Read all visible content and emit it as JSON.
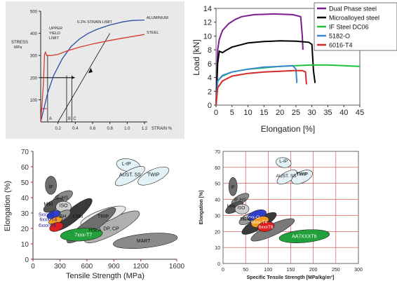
{
  "chart_data": [
    {
      "type": "line",
      "ylabel": "STRESS\nMPa",
      "xlabel": "STRAIN %",
      "xlim": [
        0,
        1.2
      ],
      "ylim": [
        0,
        500
      ],
      "xticks": [
        "0.2",
        "0.4",
        "0.6",
        "0.8",
        "1.0",
        "1.2"
      ],
      "yticks": [
        "100",
        "200",
        "300",
        "400",
        "500"
      ],
      "series": [
        {
          "name": "ALUMINIUM",
          "color": "#2b4fa3",
          "points": [
            [
              0,
              0
            ],
            [
              0.08,
              130
            ],
            [
              0.15,
              210
            ],
            [
              0.25,
              285
            ],
            [
              0.35,
              340
            ],
            [
              0.45,
              375
            ],
            [
              0.55,
              400
            ],
            [
              0.65,
              418
            ],
            [
              0.8,
              438
            ],
            [
              0.95,
              452
            ],
            [
              1.05,
              458
            ],
            [
              1.2,
              460
            ]
          ]
        },
        {
          "name": "STEEL",
          "color": "#d63a30",
          "points": [
            [
              0,
              0
            ],
            [
              0.03,
              160
            ],
            [
              0.045,
              305
            ],
            [
              0.055,
              315
            ],
            [
              0.07,
              300
            ],
            [
              0.12,
              300
            ],
            [
              0.2,
              305
            ],
            [
              0.3,
              320
            ],
            [
              0.45,
              338
            ],
            [
              0.6,
              352
            ],
            [
              0.8,
              368
            ],
            [
              1.0,
              382
            ],
            [
              1.2,
              395
            ]
          ]
        }
      ],
      "annotations": [
        "UPPER\nYIELD\nLIMIT",
        "0.2% STRAIN LIMIT",
        "ALUMINIUM",
        "STEEL",
        "A",
        "B",
        "C"
      ],
      "reference_levels": [
        200,
        60
      ]
    },
    {
      "type": "line",
      "ylabel": "Load [kN]",
      "xlabel": "Elongation [%]",
      "xlim": [
        0,
        45
      ],
      "ylim": [
        0,
        14
      ],
      "xticks": [
        "0",
        "5",
        "10",
        "15",
        "20",
        "25",
        "30",
        "35",
        "40",
        "45"
      ],
      "yticks": [
        "0",
        "2",
        "4",
        "6",
        "8",
        "10",
        "12",
        "14"
      ],
      "legend_position": "top-right",
      "series": [
        {
          "name": "Dual Phase steel",
          "color": "#7a1f8c",
          "points": [
            [
              0,
              0
            ],
            [
              0.5,
              8
            ],
            [
              1,
              9.5
            ],
            [
              2,
              10.8
            ],
            [
              4,
              11.8
            ],
            [
              6,
              12.4
            ],
            [
              8,
              12.8
            ],
            [
              12,
              13.1
            ],
            [
              18,
              13.2
            ],
            [
              24,
              13.1
            ],
            [
              26.5,
              12.8
            ],
            [
              27,
              10
            ],
            [
              27.2,
              8
            ]
          ]
        },
        {
          "name": "Microalloyed steel",
          "color": "#000000",
          "points": [
            [
              0,
              0
            ],
            [
              0.5,
              6
            ],
            [
              1,
              7.8
            ],
            [
              2,
              7.6
            ],
            [
              3,
              7.9
            ],
            [
              5,
              8.4
            ],
            [
              10,
              9.0
            ],
            [
              15,
              9.2
            ],
            [
              20,
              9.3
            ],
            [
              25,
              9.25
            ],
            [
              29,
              9.1
            ],
            [
              30,
              8.8
            ],
            [
              30.5,
              5
            ],
            [
              31,
              3.2
            ]
          ]
        },
        {
          "name": "IF Steel DC06",
          "color": "#22c33a",
          "points": [
            [
              0,
              0
            ],
            [
              0.5,
              3.5
            ],
            [
              2,
              4.2
            ],
            [
              5,
              4.8
            ],
            [
              10,
              5.2
            ],
            [
              15,
              5.4
            ],
            [
              20,
              5.6
            ],
            [
              25,
              5.7
            ],
            [
              30,
              5.8
            ],
            [
              35,
              5.8
            ],
            [
              40,
              5.7
            ],
            [
              45,
              5.6
            ]
          ]
        },
        {
          "name": "5182-O",
          "color": "#3d86d6",
          "points": [
            [
              0,
              0
            ],
            [
              0.5,
              3.5
            ],
            [
              2,
              4.3
            ],
            [
              5,
              4.8
            ],
            [
              10,
              5.2
            ],
            [
              15,
              5.5
            ],
            [
              20,
              5.6
            ],
            [
              24,
              5.7
            ],
            [
              25,
              5.2
            ],
            [
              25.3,
              3.2
            ]
          ]
        },
        {
          "name": "6016-T4",
          "color": "#d42a2a",
          "points": [
            [
              0,
              0
            ],
            [
              0.5,
              2.5
            ],
            [
              2,
              3.5
            ],
            [
              5,
              4.2
            ],
            [
              10,
              4.6
            ],
            [
              15,
              4.8
            ],
            [
              20,
              4.9
            ],
            [
              24,
              5.0
            ],
            [
              27,
              5.0
            ],
            [
              28,
              4.8
            ],
            [
              28.3,
              3.0
            ]
          ]
        }
      ]
    },
    {
      "type": "scatter",
      "ylabel": "Elongation (%)",
      "xlabel": "Tensile Strength (MPa)",
      "xlim": [
        0,
        1600
      ],
      "ylim": [
        0,
        70
      ],
      "xticks": [
        "0",
        "300",
        "600",
        "900",
        "1200",
        "1600"
      ],
      "yticks": [
        "0",
        "10",
        "20",
        "30",
        "40",
        "50",
        "60",
        "70"
      ],
      "regions": [
        {
          "label": "IF",
          "x": 200,
          "y": 47
        },
        {
          "label": "IF-HS",
          "x": 320,
          "y": 40
        },
        {
          "label": "Mild",
          "x": 170,
          "y": 36
        },
        {
          "label": "ISO",
          "x": 340,
          "y": 35
        },
        {
          "label": "BH",
          "x": 330,
          "y": 28
        },
        {
          "label": "5xxx-O",
          "x": 150,
          "y": 29
        },
        {
          "label": "6xxx-T4",
          "x": 170,
          "y": 26
        },
        {
          "label": "6xxx-T6",
          "x": 160,
          "y": 22
        },
        {
          "label": "CMn",
          "x": 500,
          "y": 28
        },
        {
          "label": "TRIP",
          "x": 780,
          "y": 28
        },
        {
          "label": "HSLA",
          "x": 690,
          "y": 19
        },
        {
          "label": "DP, CP",
          "x": 870,
          "y": 20
        },
        {
          "label": "MART",
          "x": 1230,
          "y": 12
        },
        {
          "label": "7xxx-T7",
          "x": 560,
          "y": 16
        },
        {
          "label": "L-IP",
          "x": 1040,
          "y": 62
        },
        {
          "label": "AUST. SS",
          "x": 1080,
          "y": 55
        },
        {
          "label": "TWIP",
          "x": 1340,
          "y": 55
        }
      ],
      "tick_color": "#b02020"
    },
    {
      "type": "scatter",
      "ylabel": "Elongation [%]",
      "xlabel": "Specific Tensile Strength [MPa/kg/m³]",
      "xlim": [
        0,
        300
      ],
      "ylim": [
        0,
        70
      ],
      "xticks": [
        "0",
        "50",
        "100",
        "150",
        "200",
        "250",
        "300"
      ],
      "yticks": [
        "0",
        "10",
        "20",
        "30",
        "40",
        "50",
        "60",
        "70"
      ],
      "regions": [
        {
          "label": "IF",
          "x": 22,
          "y": 48
        },
        {
          "label": "IF-HS",
          "x": 38,
          "y": 40
        },
        {
          "label": "Mild",
          "x": 18,
          "y": 36
        },
        {
          "label": "ISO",
          "x": 40,
          "y": 35
        },
        {
          "label": "BH",
          "x": 45,
          "y": 28
        },
        {
          "label": "5xxx-O",
          "x": 65,
          "y": 29
        },
        {
          "label": "6xxx-T4",
          "x": 80,
          "y": 26
        },
        {
          "label": "6xxxT6",
          "x": 95,
          "y": 23
        },
        {
          "label": "CMn",
          "x": 55,
          "y": 28
        },
        {
          "label": "AA7XXXT6",
          "x": 180,
          "y": 17
        },
        {
          "label": "L-IP",
          "x": 134,
          "y": 64
        },
        {
          "label": "AUST. SS",
          "x": 140,
          "y": 55
        },
        {
          "label": "TWIP",
          "x": 175,
          "y": 56
        }
      ],
      "grid": true
    }
  ]
}
